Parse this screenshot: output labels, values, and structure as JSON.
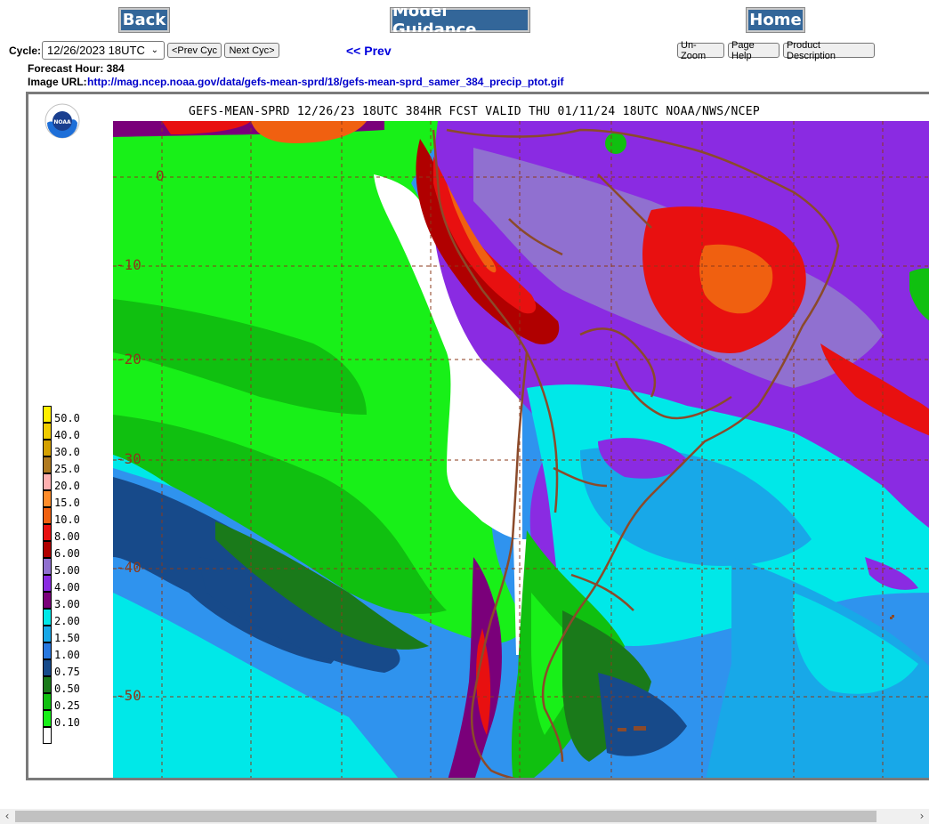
{
  "nav": {
    "back_label": "Back",
    "model_guidance_label": "Model Guidance",
    "home_label": "Home"
  },
  "cycle": {
    "label": "Cycle:",
    "selected": "12/26/2023 18UTC",
    "prev_cyc_label": "<Prev Cyc",
    "next_cyc_label": "Next Cyc>"
  },
  "prev_link": "<< Prev",
  "toolbar": {
    "unzoom_label": "Un-Zoom",
    "page_help_label": "Page Help",
    "product_description_label": "Product Description"
  },
  "info": {
    "forecast_hour": "Forecast Hour: 384",
    "image_url_label": "Image URL:",
    "image_url": "http://mag.ncep.noaa.gov/data/gefs-mean-sprd/18/gefs-mean-sprd_samer_384_precip_ptot.gif"
  },
  "map": {
    "title": "GEFS-MEAN-SPRD 12/26/23 18UTC 384HR FCST VALID THU 01/11/24 18UTC NOAA/NWS/NCEP",
    "logo_text": "NOAA",
    "lat_labels": [
      "0",
      "-10",
      "-20",
      "-30",
      "-40",
      "-50"
    ],
    "legend": [
      {
        "value": "50.0",
        "color": "#ffee00"
      },
      {
        "value": "40.0",
        "color": "#f0cc00"
      },
      {
        "value": "30.0",
        "color": "#d4a000"
      },
      {
        "value": "25.0",
        "color": "#b07a20"
      },
      {
        "value": "20.0",
        "color": "#ffb0b0"
      },
      {
        "value": "15.0",
        "color": "#ff8c2a"
      },
      {
        "value": "10.0",
        "color": "#f06010"
      },
      {
        "value": "8.00",
        "color": "#e81010"
      },
      {
        "value": "6.00",
        "color": "#b00000"
      },
      {
        "value": "5.00",
        "color": "#9070d0"
      },
      {
        "value": "4.00",
        "color": "#8a2be2"
      },
      {
        "value": "3.00",
        "color": "#7a007a"
      },
      {
        "value": "2.00",
        "color": "#00e8e8"
      },
      {
        "value": "1.50",
        "color": "#18a8e8"
      },
      {
        "value": "1.00",
        "color": "#2878e0"
      },
      {
        "value": "0.75",
        "color": "#174a8a"
      },
      {
        "value": "0.50",
        "color": "#1a7a1a"
      },
      {
        "value": "0.25",
        "color": "#10c010"
      },
      {
        "value": "0.10",
        "color": "#18f018"
      },
      {
        "value": "",
        "color": "#ffffff"
      }
    ]
  },
  "colors": {
    "button_bg": "#336699",
    "link": "#0000dd",
    "coast": "#8b4a2a"
  }
}
